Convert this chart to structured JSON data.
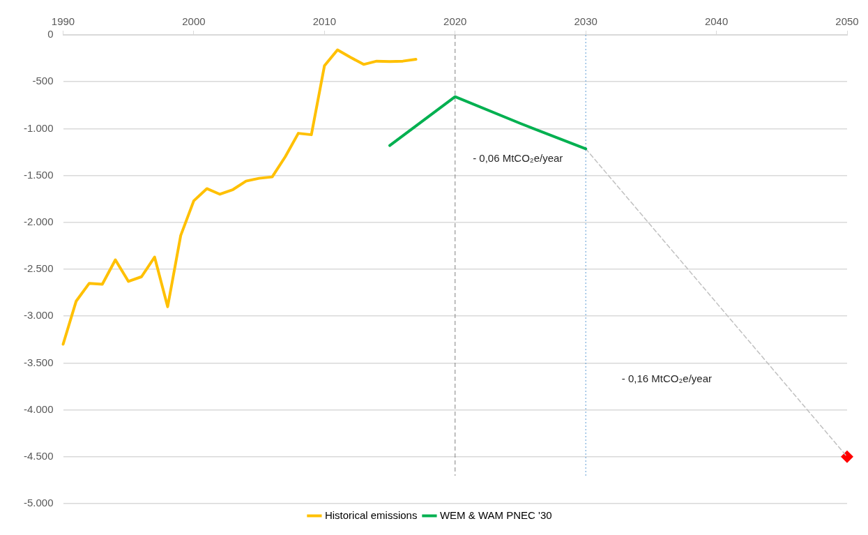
{
  "chart_data": {
    "type": "line",
    "xlim": [
      1990,
      2050
    ],
    "xticks": [
      1990,
      2000,
      2010,
      2020,
      2030,
      2040,
      2050
    ],
    "ylim": [
      -5000,
      0
    ],
    "yticks": [
      0,
      {
        "value": -500,
        "label": "-500"
      },
      {
        "value": -1000,
        "label": "-1.000"
      },
      {
        "value": -1500,
        "label": "-1.500"
      },
      {
        "value": -2000,
        "label": "-2.000"
      },
      {
        "value": -2500,
        "label": "-2.500"
      },
      {
        "value": -3000,
        "label": "-3.000"
      },
      {
        "value": -3500,
        "label": "-3.500"
      },
      {
        "value": -4000,
        "label": "-4.000"
      },
      {
        "value": -4500,
        "label": "-4.500"
      },
      {
        "value": -5000,
        "label": "-5.000"
      }
    ],
    "grid": "y",
    "legend": "bottom",
    "marker": "none",
    "series": [
      {
        "name": "Historical emissions",
        "color": "#ffc000",
        "x": [
          1990,
          1991,
          1992,
          1993,
          1994,
          1995,
          1996,
          1997,
          1998,
          1999,
          2000,
          2001,
          2002,
          2003,
          2004,
          2005,
          2006,
          2007,
          2008,
          2009,
          2010,
          2011,
          2012,
          2013,
          2014,
          2015,
          2016,
          2017
        ],
        "values": [
          -3300,
          -2840,
          -2650,
          -2660,
          -2400,
          -2630,
          -2580,
          -2370,
          -2900,
          -2140,
          -1770,
          -1640,
          -1700,
          -1650,
          -1560,
          -1530,
          -1515,
          -1300,
          -1050,
          -1065,
          -330,
          -160,
          -240,
          -315,
          -280,
          -285,
          -280,
          -260
        ]
      },
      {
        "name": "WEM & WAM PNEC '30",
        "color": "#00b050",
        "x": [
          2015,
          2020,
          2025,
          2030
        ],
        "values": [
          -1180,
          -660,
          -945,
          -1215
        ]
      },
      {
        "type": "line",
        "color": "#c0c0c0",
        "line_style": "dashed",
        "x": [
          2030,
          2050
        ],
        "values": [
          -1215,
          -4500
        ]
      },
      {
        "type": "scatter",
        "color": "#ff0000",
        "marker": "diamond",
        "x": [
          2050
        ],
        "values": [
          -4500
        ]
      }
    ],
    "ref_lines": [
      {
        "axis": "x",
        "value": 2020,
        "color": "#808080",
        "line_style": "dashed"
      },
      {
        "axis": "x",
        "value": 2030,
        "color": "#5b9bd5",
        "line_style": "dotted"
      }
    ],
    "annotations": [
      "- 0,06 MtCO₂e/year",
      "- 0,16 MtCO₂e/year"
    ]
  }
}
